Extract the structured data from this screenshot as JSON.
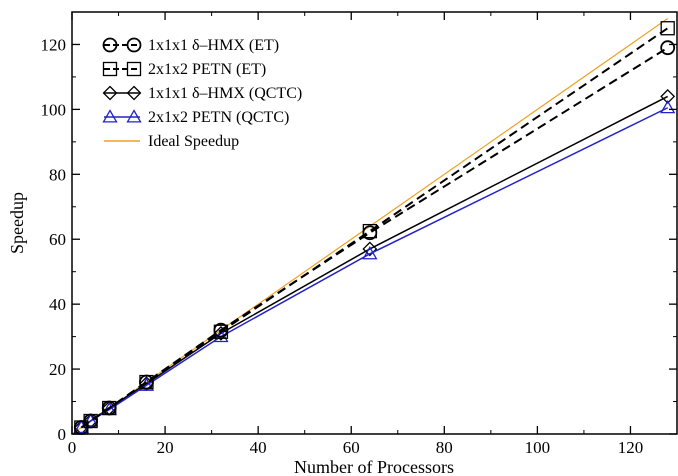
{
  "chart_data": {
    "type": "line",
    "title": "",
    "xlabel": "Number of Processors",
    "ylabel": "Speedup",
    "xlim": [
      0,
      130
    ],
    "ylim": [
      0,
      130
    ],
    "xticks": [
      0,
      20,
      40,
      60,
      80,
      100,
      120
    ],
    "yticks": [
      0,
      20,
      40,
      60,
      80,
      100,
      120
    ],
    "grid": false,
    "legend_position": "top-left",
    "series": [
      {
        "name": "1x1x1 δ–HMX (ET)",
        "color": "#000000",
        "line_style": "dashed",
        "marker": "circle",
        "x": [
          2,
          4,
          8,
          16,
          32,
          64,
          128
        ],
        "y": [
          2,
          4,
          8,
          16,
          32,
          62,
          119
        ]
      },
      {
        "name": "2x1x2 PETN (ET)",
        "color": "#000000",
        "line_style": "dashed",
        "marker": "square",
        "x": [
          2,
          4,
          8,
          16,
          32,
          64,
          128
        ],
        "y": [
          2,
          4,
          8,
          16,
          31.5,
          62.5,
          125
        ]
      },
      {
        "name": "1x1x1 δ–HMX (QCTC)",
        "color": "#000000",
        "line_style": "solid",
        "marker": "diamond",
        "x": [
          2,
          4,
          8,
          16,
          32,
          64,
          128
        ],
        "y": [
          2,
          4,
          8,
          15.5,
          31,
          57,
          104
        ]
      },
      {
        "name": "2x1x2 PETN (QCTC)",
        "color": "#2222cc",
        "line_style": "solid",
        "marker": "triangle",
        "x": [
          2,
          4,
          8,
          16,
          32,
          64,
          128
        ],
        "y": [
          2,
          4,
          7.5,
          15,
          30,
          55.5,
          100.5
        ]
      },
      {
        "name": "Ideal Speedup",
        "color": "#f0a020",
        "line_style": "solid",
        "marker": "none",
        "x": [
          0,
          128
        ],
        "y": [
          0,
          128
        ]
      }
    ]
  }
}
